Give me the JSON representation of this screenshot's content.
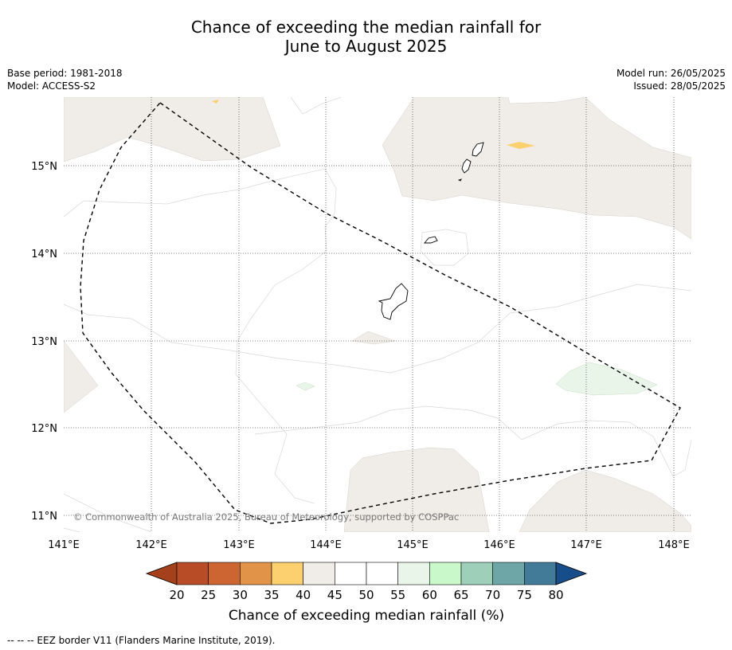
{
  "title_line1": "Chance of exceeding the median rainfall for",
  "title_line2": "June to August 2025",
  "base_period": "Base period: 1981-2018",
  "model": "Model: ACCESS-S2",
  "model_run": "Model run: 26/05/2025",
  "issued": "Issued: 28/05/2025",
  "copyright": "© Commonwealth of Australia 2025, Bureau of Meteorology, supported by COSPPac",
  "lat_labels": [
    "15°N",
    "14°N",
    "13°N",
    "12°N",
    "11°N"
  ],
  "lon_labels": [
    "141°E",
    "142°E",
    "143°E",
    "144°E",
    "145°E",
    "146°E",
    "147°E",
    "148°E"
  ],
  "colorbar": {
    "ticks": [
      "20",
      "25",
      "30",
      "35",
      "40",
      "45",
      "50",
      "55",
      "60",
      "65",
      "70",
      "75",
      "80"
    ],
    "colors": [
      "#a4411c",
      "#b84c26",
      "#cd6532",
      "#e19448",
      "#fcd06f",
      "#f0ece7",
      "#ffffff",
      "#ffffff",
      "#e9f5e8",
      "#c9f9cb",
      "#9ecfb8",
      "#6ea5a7",
      "#427b97",
      "#174d89"
    ],
    "label": "Chance of exceeding median rainfall (%)"
  },
  "footer": "--  --  -- EEZ border V11 (Flanders Marine Institute, 2019)."
}
